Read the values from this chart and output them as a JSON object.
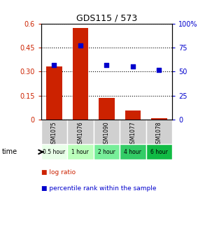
{
  "title": "GDS115 / 573",
  "samples": [
    "GSM1075",
    "GSM1076",
    "GSM1090",
    "GSM1077",
    "GSM1078"
  ],
  "time_labels": [
    "0.5 hour",
    "1 hour",
    "2 hour",
    "4 hour",
    "6 hour"
  ],
  "log_ratio": [
    0.33,
    0.57,
    0.135,
    0.058,
    0.01
  ],
  "percentile_rank": [
    57,
    77,
    57,
    55,
    52
  ],
  "bar_color": "#cc2200",
  "marker_color": "#0000cc",
  "left_ylim": [
    0,
    0.6
  ],
  "right_ylim": [
    0,
    100
  ],
  "left_yticks": [
    0,
    0.15,
    0.3,
    0.45,
    0.6
  ],
  "left_yticklabels": [
    "0",
    "0.15",
    "0.30",
    "0.45",
    "0.6"
  ],
  "right_yticks": [
    0,
    25,
    50,
    75,
    100
  ],
  "right_yticklabels": [
    "0",
    "25",
    "50",
    "75",
    "100%"
  ],
  "time_colors": [
    "#e8ffe8",
    "#bbffbb",
    "#77ee99",
    "#33cc66",
    "#11bb44"
  ],
  "gray_color": "#d0d0d0",
  "legend_log_ratio": "log ratio",
  "legend_percentile": "percentile rank within the sample"
}
